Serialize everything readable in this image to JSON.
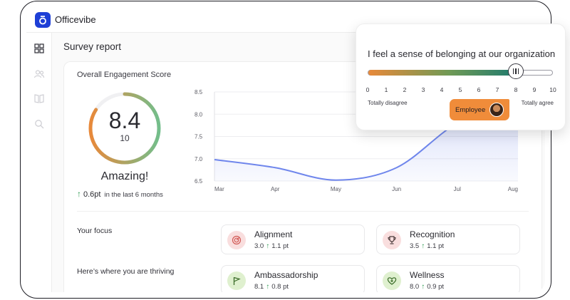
{
  "app": {
    "name": "Officevibe",
    "brand_color": "#1e3fd6"
  },
  "sidebar": {
    "items": [
      {
        "icon": "grid-icon",
        "active": true
      },
      {
        "icon": "people-icon",
        "active": false
      },
      {
        "icon": "book-icon",
        "active": false
      },
      {
        "icon": "search-icon",
        "active": false
      }
    ]
  },
  "page": {
    "title": "Survey report"
  },
  "engagement": {
    "title": "Overall Engagement Score",
    "score": "8.4",
    "out_of": "10",
    "score_fraction": 0.84,
    "verdict": "Amazing!",
    "delta_value": "0.6pt",
    "delta_period": "in the last 6 months",
    "colors": {
      "low": "#e8893a",
      "high": "#73be8b"
    }
  },
  "chart_data": {
    "type": "area",
    "x": [
      "Mar",
      "Apr",
      "May",
      "Jun",
      "Jul",
      "Aug"
    ],
    "values": [
      6.98,
      6.8,
      6.52,
      6.8,
      7.8,
      8.3
    ],
    "yticks": [
      "8.5",
      "8.0",
      "7.5",
      "7.0",
      "6.5"
    ],
    "ylim": [
      6.5,
      8.5
    ],
    "grid": true,
    "line_color": "#6f86ec"
  },
  "focus": {
    "label": "Your focus",
    "items": [
      {
        "name": "Alignment",
        "score": "3.0",
        "delta": "1.1 pt",
        "icon": "target-icon",
        "bg": "#f9dede",
        "fg": "#d25a55"
      },
      {
        "name": "Recognition",
        "score": "3.5",
        "delta": "1.1 pt",
        "icon": "trophy-icon",
        "bg": "#f9dede",
        "fg": "#4a3a3a"
      }
    ]
  },
  "thriving": {
    "label": "Here’s where you are thriving",
    "items": [
      {
        "name": "Ambassadorship",
        "score": "8.1",
        "delta": "0.8 pt",
        "icon": "flag-icon",
        "bg": "#dff0cf",
        "fg": "#3c6d2a"
      },
      {
        "name": "Wellness",
        "score": "8.0",
        "delta": "0.9 pt",
        "icon": "heart-plus-icon",
        "bg": "#dff0cf",
        "fg": "#3c6d2a"
      }
    ]
  },
  "question": {
    "text": "I feel a sense of belonging at our organization",
    "value": 8,
    "ticks": [
      "0",
      "1",
      "2",
      "3",
      "4",
      "5",
      "6",
      "7",
      "8",
      "9",
      "10"
    ],
    "min_label": "Totally disagree",
    "max_label": "Totally agree",
    "respondent": "Employee",
    "tag_color": "#f08c3a"
  }
}
